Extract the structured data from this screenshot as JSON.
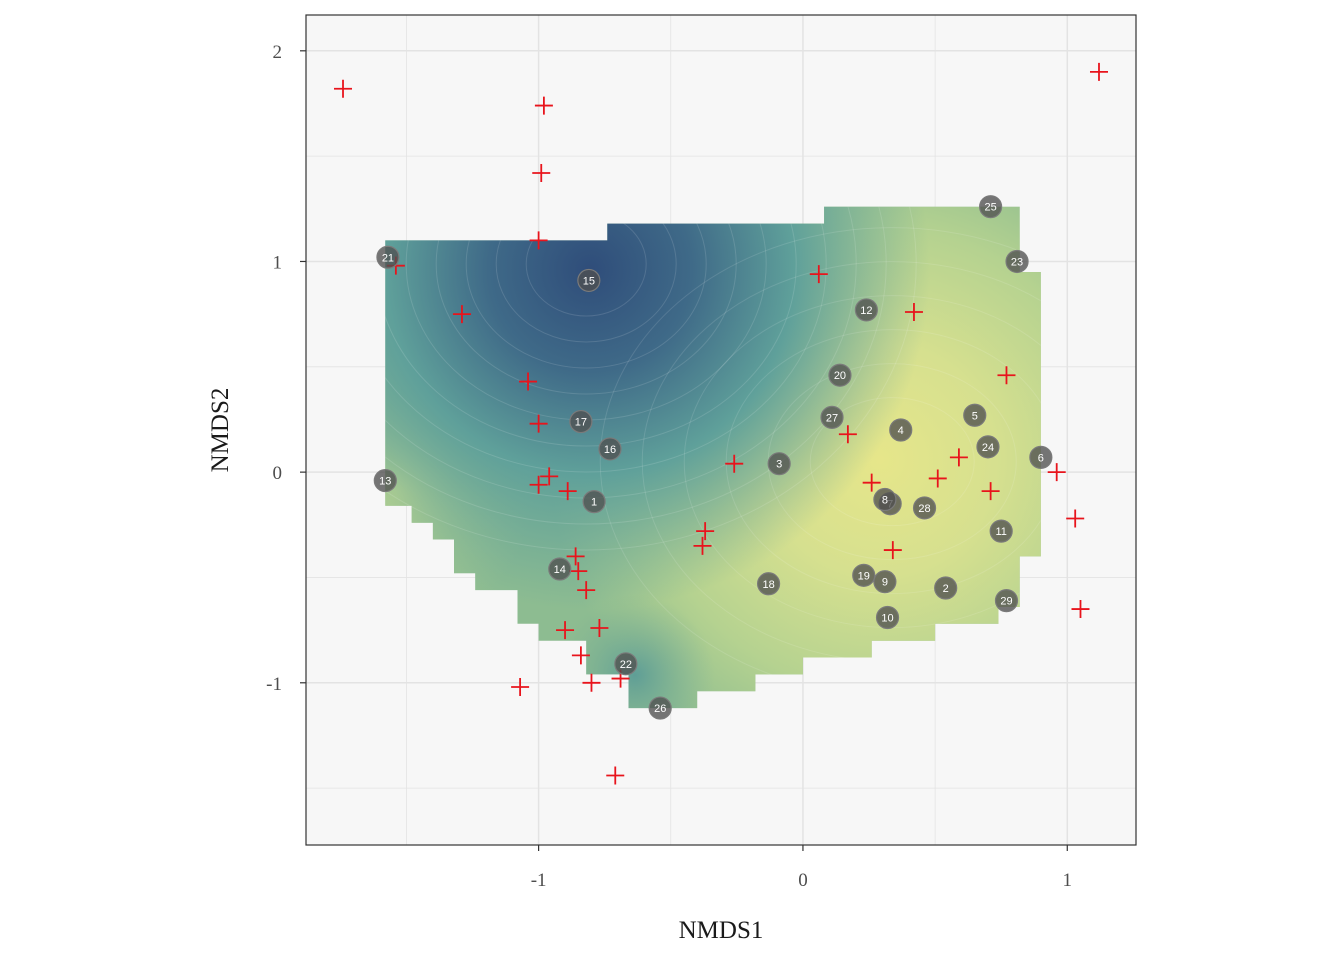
{
  "chart_data": {
    "type": "scatter",
    "title": "",
    "xlabel": "NMDS1",
    "ylabel": "NMDS2",
    "xlim": [
      -1.88,
      1.26
    ],
    "ylim": [
      -1.77,
      2.17
    ],
    "x_ticks": [
      -1,
      0,
      1
    ],
    "x_tick_labels": [
      "-1",
      "0",
      "1"
    ],
    "y_ticks": [
      -1,
      0,
      1,
      2
    ],
    "y_tick_labels": [
      "-1",
      "0",
      "1",
      "2"
    ],
    "grid": true,
    "colors": {
      "panel_background": "#f7f7f7",
      "grid": "#e3e3e3",
      "species_marker": "#e8141c",
      "site_marker": "#4f4f4f",
      "surface_low": "#2f4d7a",
      "surface_mid": "#5fa09a",
      "surface_high": "#e6e68a"
    },
    "surface": {
      "type": "contour-fill",
      "note_on_scale": "dark blue = low, yellow = high",
      "low_center": [
        -0.82,
        0.95
      ],
      "high_center": [
        0.3,
        0.05
      ],
      "outline": [
        [
          -1.58,
          1.1
        ],
        [
          -0.74,
          1.1
        ],
        [
          -0.74,
          1.18
        ],
        [
          0.08,
          1.18
        ],
        [
          0.08,
          1.26
        ],
        [
          0.82,
          1.26
        ],
        [
          0.82,
          0.95
        ],
        [
          0.9,
          0.95
        ],
        [
          0.9,
          -0.4
        ],
        [
          0.82,
          -0.4
        ],
        [
          0.82,
          -0.64
        ],
        [
          0.74,
          -0.64
        ],
        [
          0.74,
          -0.72
        ],
        [
          0.5,
          -0.72
        ],
        [
          0.5,
          -0.8
        ],
        [
          0.26,
          -0.8
        ],
        [
          0.26,
          -0.88
        ],
        [
          0.0,
          -0.88
        ],
        [
          0.0,
          -0.96
        ],
        [
          -0.18,
          -0.96
        ],
        [
          -0.18,
          -1.04
        ],
        [
          -0.4,
          -1.04
        ],
        [
          -0.4,
          -1.12
        ],
        [
          -0.66,
          -1.12
        ],
        [
          -0.66,
          -0.96
        ],
        [
          -0.82,
          -0.96
        ],
        [
          -0.82,
          -0.8
        ],
        [
          -1.0,
          -0.8
        ],
        [
          -1.0,
          -0.72
        ],
        [
          -1.08,
          -0.72
        ],
        [
          -1.08,
          -0.56
        ],
        [
          -1.24,
          -0.56
        ],
        [
          -1.24,
          -0.48
        ],
        [
          -1.32,
          -0.48
        ],
        [
          -1.32,
          -0.32
        ],
        [
          -1.4,
          -0.32
        ],
        [
          -1.4,
          -0.24
        ],
        [
          -1.48,
          -0.24
        ],
        [
          -1.48,
          -0.16
        ],
        [
          -1.58,
          -0.16
        ]
      ]
    },
    "series": [
      {
        "marker": "cross",
        "points": [
          {
            "x": -1.74,
            "y": 1.82
          },
          {
            "x": -0.98,
            "y": 1.74
          },
          {
            "x": -0.99,
            "y": 1.42
          },
          {
            "x": -1.0,
            "y": 1.1
          },
          {
            "x": 1.12,
            "y": 1.9
          },
          {
            "x": -1.54,
            "y": 0.98
          },
          {
            "x": -1.29,
            "y": 0.75
          },
          {
            "x": 0.06,
            "y": 0.94
          },
          {
            "x": 0.42,
            "y": 0.76
          },
          {
            "x": -1.04,
            "y": 0.43
          },
          {
            "x": -1.0,
            "y": 0.23
          },
          {
            "x": 0.77,
            "y": 0.46
          },
          {
            "x": 0.17,
            "y": 0.18
          },
          {
            "x": -0.26,
            "y": 0.04
          },
          {
            "x": 0.59,
            "y": 0.07
          },
          {
            "x": -0.96,
            "y": -0.02
          },
          {
            "x": -1.0,
            "y": -0.06
          },
          {
            "x": -0.89,
            "y": -0.09
          },
          {
            "x": 0.26,
            "y": -0.05
          },
          {
            "x": 0.51,
            "y": -0.03
          },
          {
            "x": 0.71,
            "y": -0.09
          },
          {
            "x": 0.96,
            "y": 0.0
          },
          {
            "x": 1.03,
            "y": -0.22
          },
          {
            "x": -0.37,
            "y": -0.28
          },
          {
            "x": -0.38,
            "y": -0.35
          },
          {
            "x": 0.34,
            "y": -0.37
          },
          {
            "x": -0.86,
            "y": -0.4
          },
          {
            "x": -0.85,
            "y": -0.47
          },
          {
            "x": -0.82,
            "y": -0.56
          },
          {
            "x": 1.05,
            "y": -0.65
          },
          {
            "x": -0.9,
            "y": -0.75
          },
          {
            "x": -0.77,
            "y": -0.74
          },
          {
            "x": -0.84,
            "y": -0.87
          },
          {
            "x": -0.8,
            "y": -1.0
          },
          {
            "x": -0.69,
            "y": -0.98
          },
          {
            "x": -1.07,
            "y": -1.02
          },
          {
            "x": -0.71,
            "y": -1.44
          }
        ]
      },
      {
        "marker": "labeled-circle",
        "points": [
          {
            "label": "1",
            "x": -0.79,
            "y": -0.14
          },
          {
            "label": "2",
            "x": 0.54,
            "y": -0.55
          },
          {
            "label": "3",
            "x": -0.09,
            "y": 0.04
          },
          {
            "label": "4",
            "x": 0.37,
            "y": 0.2
          },
          {
            "label": "5",
            "x": 0.65,
            "y": 0.27
          },
          {
            "label": "6",
            "x": 0.9,
            "y": 0.07
          },
          {
            "label": "7",
            "x": 0.33,
            "y": -0.15
          },
          {
            "label": "8",
            "x": 0.31,
            "y": -0.13
          },
          {
            "label": "9",
            "x": 0.31,
            "y": -0.52
          },
          {
            "label": "10",
            "x": 0.32,
            "y": -0.69
          },
          {
            "label": "11",
            "x": 0.75,
            "y": -0.28
          },
          {
            "label": "12",
            "x": 0.24,
            "y": 0.77
          },
          {
            "label": "13",
            "x": -1.58,
            "y": -0.04
          },
          {
            "label": "14",
            "x": -0.92,
            "y": -0.46
          },
          {
            "label": "15",
            "x": -0.81,
            "y": 0.91
          },
          {
            "label": "16",
            "x": -0.73,
            "y": 0.11
          },
          {
            "label": "17",
            "x": -0.84,
            "y": 0.24
          },
          {
            "label": "18",
            "x": -0.13,
            "y": -0.53
          },
          {
            "label": "19",
            "x": 0.23,
            "y": -0.49
          },
          {
            "label": "20",
            "x": 0.14,
            "y": 0.46
          },
          {
            "label": "21",
            "x": -1.57,
            "y": 1.02
          },
          {
            "label": "22",
            "x": -0.67,
            "y": -0.91
          },
          {
            "label": "23",
            "x": 0.81,
            "y": 1.0
          },
          {
            "label": "24",
            "x": 0.7,
            "y": 0.12
          },
          {
            "label": "25",
            "x": 0.71,
            "y": 1.26
          },
          {
            "label": "26",
            "x": -0.54,
            "y": -1.12
          },
          {
            "label": "27",
            "x": 0.11,
            "y": 0.26
          },
          {
            "label": "28",
            "x": 0.46,
            "y": -0.17
          },
          {
            "label": "29",
            "x": 0.77,
            "y": -0.61
          }
        ]
      }
    ]
  }
}
